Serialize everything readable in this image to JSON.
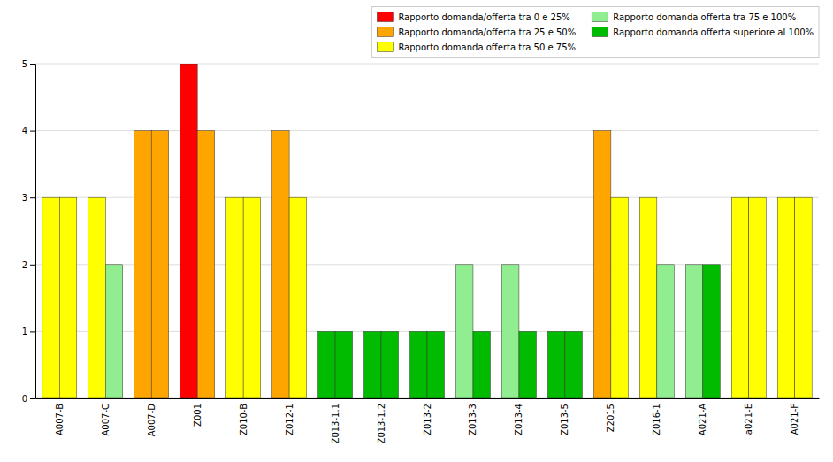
{
  "chart_data": {
    "type": "bar",
    "categories": [
      "A007-B",
      "A007-C",
      "A007-D",
      "Z001",
      "Z010-B",
      "Z012-1",
      "Z013-1.1",
      "Z013-1.2",
      "Z013-2",
      "Z013-3",
      "Z013-4",
      "Z013-5",
      "Z2015",
      "Z016-1",
      "A021-A",
      "a021-E",
      "A021-F"
    ],
    "series": [
      {
        "values": [
          3,
          3,
          4,
          5,
          3,
          4,
          1,
          1,
          1,
          2,
          2,
          1,
          4,
          3,
          2,
          3,
          3
        ],
        "colors": [
          "#FFFF00",
          "#FFFF00",
          "#FFA500",
          "#FF0000",
          "#FFFF00",
          "#FFA500",
          "#00BB00",
          "#00BB00",
          "#00BB00",
          "#90EE90",
          "#90EE90",
          "#00BB00",
          "#FFA500",
          "#FFFF00",
          "#90EE90",
          "#FFFF00",
          "#FFFF00"
        ]
      },
      {
        "values": [
          3,
          2,
          4,
          4,
          3,
          3,
          1,
          1,
          1,
          1,
          1,
          1,
          3,
          2,
          2,
          3,
          3
        ],
        "colors": [
          "#FFFF00",
          "#90EE90",
          "#FFA500",
          "#FFA500",
          "#FFFF00",
          "#FFFF00",
          "#00BB00",
          "#00BB00",
          "#00BB00",
          "#00BB00",
          "#00BB00",
          "#00BB00",
          "#FFFF00",
          "#90EE90",
          "#00BB00",
          "#FFFF00",
          "#FFFF00"
        ]
      }
    ],
    "legend_entries": [
      {
        "label": "Rapporto domanda/offerta tra 0 e 25%",
        "color": "#FF0000"
      },
      {
        "label": "Rapporto domanda/offerta tra 25 e 50%",
        "color": "#FFA500"
      },
      {
        "label": "Rapporto domanda  offerta tra 50 e 75%",
        "color": "#FFFF00"
      },
      {
        "label": "Rapporto domanda  offerta tra 75 e 100%",
        "color": "#90EE90"
      },
      {
        "label": "Rapporto domanda  offerta superiore al 100%",
        "color": "#00BB00"
      }
    ],
    "ylim": [
      0,
      5
    ],
    "yticks": [
      0,
      1,
      2,
      3,
      4,
      5
    ],
    "grid": true,
    "legend": "upper right"
  }
}
